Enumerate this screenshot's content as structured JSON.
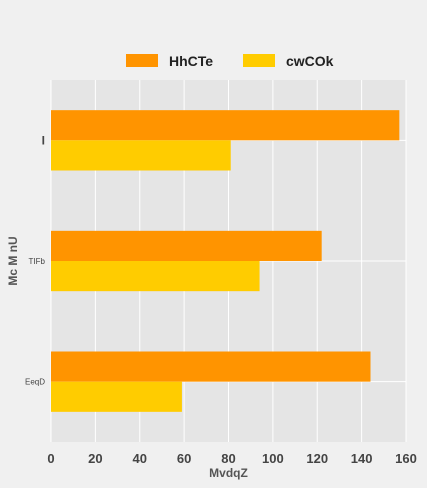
{
  "colors": {
    "background": "#f0f0f0",
    "plot_background": "#e5e5e5",
    "grid": "#ffffff"
  },
  "chart_data": {
    "type": "bar",
    "orientation": "horizontal",
    "categories": [
      "I",
      "TIFb",
      "EeqD"
    ],
    "series": [
      {
        "name": "HhCTe",
        "color": "#ff9400",
        "values": [
          157,
          122,
          144
        ]
      },
      {
        "name": "cwCOk",
        "color": "#ffcc00",
        "values": [
          81,
          94,
          59
        ]
      }
    ],
    "xlabel": "MvdqZ",
    "ylabel": "Mc M nU",
    "xlim": [
      0,
      160
    ],
    "xticks": [
      0,
      20,
      40,
      60,
      80,
      100,
      120,
      140,
      160
    ],
    "grid": true,
    "legend_position": "top-center"
  }
}
